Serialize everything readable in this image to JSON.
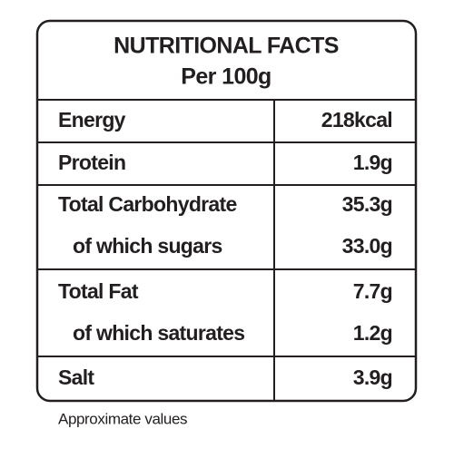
{
  "header": {
    "title": "NUTRITIONAL FACTS",
    "subtitle": "Per 100g"
  },
  "table": {
    "rows": [
      [
        "Energy",
        "218kcal"
      ],
      [
        "Protein",
        "1.9g"
      ],
      [
        "Total Carbohydrate",
        "35.3g"
      ],
      [
        "of which sugars",
        "33.0g"
      ],
      [
        "Total Fat",
        "7.7g"
      ],
      [
        "of which saturates",
        "1.2g"
      ],
      [
        "Salt",
        "3.9g"
      ]
    ]
  },
  "footer": "Approximate values"
}
